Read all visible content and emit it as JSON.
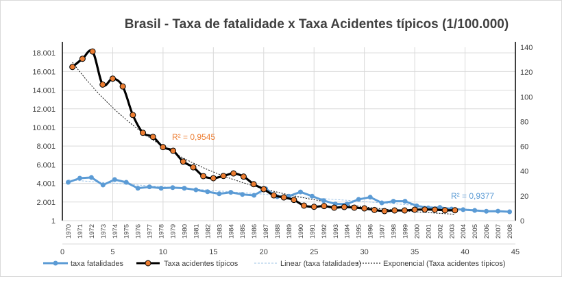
{
  "chart_data": {
    "type": "line",
    "title": "Brasil - Taxa de fatalidade x Taxa Acidentes típicos (1/100.000)",
    "categories": [
      "1970",
      "1971",
      "1972",
      "1973",
      "1974",
      "1975",
      "1976",
      "1977",
      "1978",
      "1979",
      "1980",
      "1981",
      "1982",
      "1983",
      "1984",
      "1985",
      "1986",
      "1987",
      "1988",
      "1989",
      "1990",
      "1991",
      "1992",
      "1993",
      "1994",
      "1995",
      "1996",
      "1997",
      "1998",
      "1999",
      "2000",
      "2001",
      "2002",
      "2003",
      "2004",
      "2005",
      "2006",
      "2007",
      "2008"
    ],
    "left_axis": {
      "ticks": [
        "1",
        "2.001",
        "4.001",
        "6.001",
        "8.001",
        "10.001",
        "12.001",
        "14.001",
        "16.001",
        "18.001"
      ],
      "values": [
        1,
        2001,
        4001,
        6001,
        8001,
        10001,
        12001,
        14001,
        16001,
        18001
      ],
      "range": [
        1,
        18600
      ]
    },
    "right_axis": {
      "ticks": [
        "0",
        "20",
        "40",
        "60",
        "80",
        "100",
        "120",
        "140"
      ],
      "values": [
        0,
        20,
        40,
        60,
        80,
        100,
        120,
        140
      ],
      "range": [
        0,
        140
      ]
    },
    "bottom_axis": {
      "ticks": [
        "0",
        "5",
        "10",
        "15",
        "20",
        "25",
        "30",
        "35",
        "40",
        "45"
      ],
      "values": [
        0,
        5,
        10,
        15,
        20,
        25,
        30,
        35,
        40,
        45
      ],
      "range": [
        0,
        45
      ]
    },
    "grid": true,
    "legend_position": "bottom",
    "series": [
      {
        "name": "taxa fatalidades",
        "axis": "right",
        "x_axis": "categories",
        "color": "#5B9BD5",
        "values": [
          31,
          34.3,
          34.9,
          28.8,
          33.2,
          31,
          26.2,
          27.3,
          26.2,
          26.7,
          26.2,
          24.9,
          23.4,
          21.7,
          22.9,
          21.2,
          20.5,
          25.8,
          19.4,
          19.8,
          23.2,
          19.8,
          16.2,
          13.5,
          13.5,
          17.2,
          19,
          14.4,
          15.7,
          15.7,
          12,
          10.3,
          10.7,
          9.4,
          8.9,
          8.3,
          7.6,
          7.7,
          7.2
        ]
      },
      {
        "name": "Taxa acidentes típicos",
        "axis": "left",
        "x_axis": "bottom",
        "color": "#000000",
        "marker_color": "#ED7D31",
        "x": [
          1,
          2,
          3,
          4,
          5,
          6,
          7,
          8,
          9,
          10,
          11,
          12,
          13,
          14,
          15,
          16,
          17,
          18,
          19,
          20,
          21,
          22,
          23,
          24,
          25,
          26,
          27,
          28,
          29,
          30,
          31,
          32,
          33,
          34,
          35,
          36,
          37,
          38,
          39
        ],
        "values": [
          16490,
          17370,
          18150,
          14600,
          15240,
          14400,
          11340,
          9430,
          8990,
          7890,
          7500,
          6340,
          5730,
          4780,
          4560,
          4800,
          5070,
          4730,
          3920,
          3380,
          2720,
          2500,
          2230,
          1620,
          1490,
          1570,
          1400,
          1470,
          1400,
          1320,
          1150,
          1030,
          1100,
          1100,
          1180,
          1200,
          1180,
          1120,
          1120
        ]
      }
    ],
    "trendlines": [
      {
        "name": "Linear (taxa fatalidades)",
        "type": "linear",
        "of": "taxa fatalidades",
        "r2_label": "R² = 0,9377",
        "color": "#9DC3E6"
      },
      {
        "name": "Exponencial (Taxa acidentes típicos)",
        "type": "exponential",
        "of": "Taxa acidentes típicos",
        "r2_label": "R² = 0,9545",
        "color": "#000000"
      }
    ],
    "r2_colors": {
      "exponential": "#ED7D31",
      "linear": "#5B9BD5"
    }
  }
}
